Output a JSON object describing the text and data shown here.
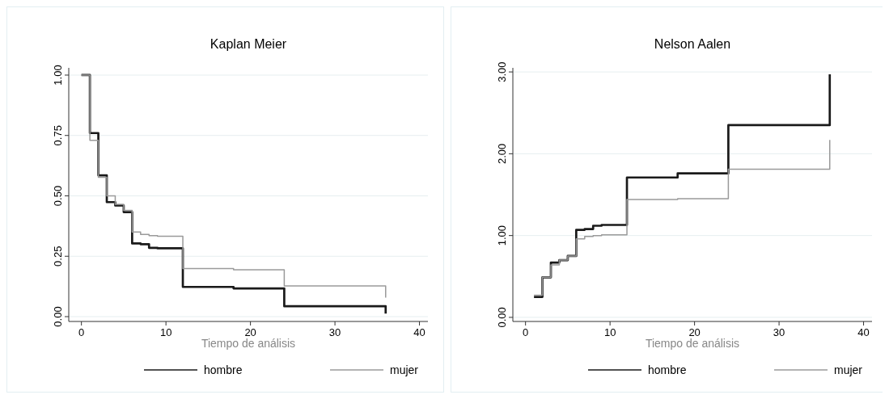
{
  "chart_data": [
    {
      "type": "step",
      "title": "Kaplan Meier",
      "xlabel": "Tiempo de análisis",
      "xlim": [
        -1.5,
        41
      ],
      "xticks": [
        0,
        10,
        20,
        30,
        40
      ],
      "ylim": [
        -0.02,
        1.03
      ],
      "yticks": [
        {
          "value": 0,
          "label": "0.00"
        },
        {
          "value": 0.25,
          "label": "0.25"
        },
        {
          "value": 0.5,
          "label": "0.50"
        },
        {
          "value": 0.75,
          "label": "0.75"
        },
        {
          "value": 1,
          "label": "1.00"
        }
      ],
      "grid": "y",
      "legend": "bottom",
      "line_style": "solid",
      "series": [
        {
          "name": "hombre",
          "color": "#1a1a1a",
          "x": [
            0,
            1,
            2,
            3,
            4,
            5,
            6,
            7,
            8,
            9,
            12,
            18,
            24,
            36
          ],
          "values": [
            1,
            0.76,
            0.585,
            0.474,
            0.46,
            0.433,
            0.303,
            0.3,
            0.285,
            0.283,
            0.123,
            0.117,
            0.043,
            0.013
          ]
        },
        {
          "name": "mujer",
          "color": "#9a9a9a",
          "x": [
            0,
            1,
            2,
            3,
            4,
            5,
            6,
            7,
            8,
            9,
            12,
            18,
            24,
            36
          ],
          "values": [
            1,
            0.73,
            0.577,
            0.5,
            0.465,
            0.44,
            0.35,
            0.34,
            0.335,
            0.333,
            0.199,
            0.194,
            0.127,
            0.079
          ]
        }
      ]
    },
    {
      "type": "step",
      "title": "Nelson Aalen",
      "xlabel": "Tiempo de análisis",
      "xlim": [
        -1.5,
        41
      ],
      "xticks": [
        0,
        10,
        20,
        30,
        40
      ],
      "ylim": [
        -0.05,
        3.05
      ],
      "yticks": [
        {
          "value": 0,
          "label": "0.00"
        },
        {
          "value": 1,
          "label": "1.00"
        },
        {
          "value": 2,
          "label": "2.00"
        },
        {
          "value": 3,
          "label": "3.00"
        }
      ],
      "grid": "y",
      "legend": "bottom",
      "line_style": "solid",
      "series": [
        {
          "name": "hombre",
          "color": "#1a1a1a",
          "x": [
            1,
            2,
            3,
            4,
            5,
            6,
            7,
            8,
            9,
            12,
            18,
            24,
            36
          ],
          "values": [
            0.25,
            0.49,
            0.67,
            0.7,
            0.75,
            1.07,
            1.08,
            1.12,
            1.13,
            1.71,
            1.76,
            2.35,
            2.97
          ]
        },
        {
          "name": "mujer",
          "color": "#9a9a9a",
          "x": [
            1,
            2,
            3,
            4,
            5,
            6,
            7,
            8,
            9,
            12,
            18,
            24,
            36
          ],
          "values": [
            0.27,
            0.49,
            0.64,
            0.7,
            0.75,
            0.96,
            0.99,
            1.0,
            1.01,
            1.44,
            1.45,
            1.81,
            2.17
          ]
        }
      ]
    }
  ]
}
